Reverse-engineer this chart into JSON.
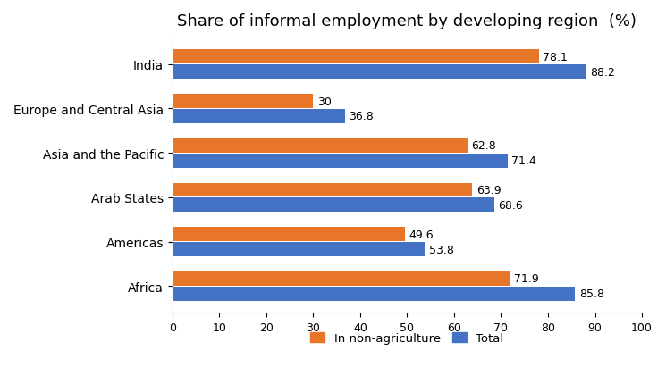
{
  "title": "Share of informal employment by developing region  (%)",
  "categories": [
    "India",
    "Europe and Central Asia",
    "Asia and the Pacific",
    "Arab States",
    "Americas",
    "Africa"
  ],
  "non_agriculture": [
    78.1,
    30.0,
    62.8,
    63.9,
    49.6,
    71.9
  ],
  "total": [
    88.2,
    36.8,
    71.4,
    68.6,
    53.8,
    85.8
  ],
  "non_agriculture_labels": [
    "78.1",
    "30",
    "62.8",
    "63.9",
    "49.6",
    "71.9"
  ],
  "total_labels": [
    "88.2",
    "36.8",
    "71.4",
    "68.6",
    "53.8",
    "85.8"
  ],
  "color_non_agriculture": "#E87629",
  "color_total": "#4472C4",
  "xlim": [
    0,
    100
  ],
  "xticks": [
    0,
    10,
    20,
    30,
    40,
    50,
    60,
    70,
    80,
    90,
    100
  ],
  "legend_labels": [
    "In non-agriculture",
    "Total"
  ],
  "bar_height": 0.32,
  "bar_gap": 0.02,
  "background_color": "#FFFFFF",
  "label_fontsize": 9,
  "title_fontsize": 13,
  "ytick_fontsize": 10,
  "xtick_fontsize": 9
}
